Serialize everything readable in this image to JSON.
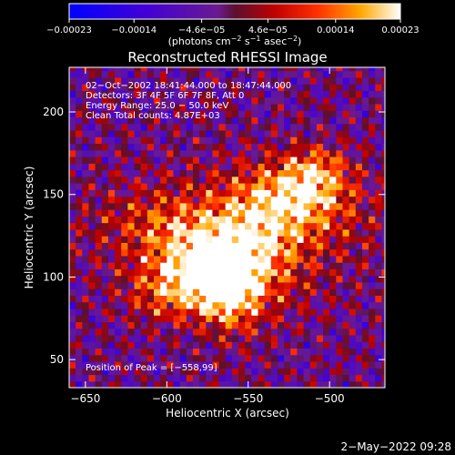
{
  "chart_data": {
    "type": "heatmap",
    "title": "Reconstructed RHESSI Image",
    "xlabel": "Heliocentric X (arcsec)",
    "ylabel": "Heliocentric Y (arcsec)",
    "xlim": [
      -660,
      -466
    ],
    "ylim": [
      33,
      227
    ],
    "x_ticks": [
      -650,
      -600,
      -550,
      -500
    ],
    "x_tick_labels": [
      "−650",
      "−600",
      "−550",
      "−500"
    ],
    "y_ticks": [
      50,
      100,
      150,
      200
    ],
    "y_tick_labels": [
      "50",
      "100",
      "150",
      "200"
    ],
    "colorbar": {
      "range": [
        -0.00023,
        0.00023
      ],
      "tick_values": [
        -0.00023,
        -0.00014,
        -4.6e-05,
        4.6e-05,
        0.00014,
        0.00023
      ],
      "tick_labels": [
        "−0.00023",
        "−0.00014",
        "−4.6e−05",
        "4.6e−05",
        "0.00014",
        "0.00023"
      ],
      "unit_main": "(photons cm",
      "unit_exp1": "−2",
      "unit_mid1": " s",
      "unit_exp2": "−1",
      "unit_mid2": " asec",
      "unit_exp3": "−2",
      "unit_end": ")"
    },
    "annotations": [
      "02−Oct−2002 18:41:44.000 to 18:47:44.000",
      "Detectors: 3F 4F 5F 6F 7F 8F, Att 0",
      "Energy Range: 25.0 − 50.0 keV",
      "Clean    Total counts: 4.87E+03"
    ],
    "peak_label": "Position of Peak = [−558,99]",
    "peak": [
      -558,
      99
    ],
    "grid": false,
    "sources": [
      {
        "x": -555,
        "y": 130,
        "sx": 60,
        "sy": 26,
        "amp": 9e-05
      },
      {
        "x": -520,
        "y": 148,
        "sx": 22,
        "sy": 14,
        "amp": 0.00018
      },
      {
        "x": -508,
        "y": 165,
        "sx": 14,
        "sy": 10,
        "amp": 0.00013
      },
      {
        "x": -545,
        "y": 115,
        "sx": 20,
        "sy": 25,
        "amp": 0.00014
      },
      {
        "x": -560,
        "y": 95,
        "sx": 12,
        "sy": 18,
        "amp": 0.0002
      },
      {
        "x": -578,
        "y": 98,
        "sx": 16,
        "sy": 14,
        "amp": 0.00015
      },
      {
        "x": -600,
        "y": 90,
        "sx": 18,
        "sy": 12,
        "amp": 0.00011
      },
      {
        "x": -585,
        "y": 115,
        "sx": 22,
        "sy": 14,
        "amp": 0.00012
      },
      {
        "x": -600,
        "y": 135,
        "sx": 28,
        "sy": 12,
        "amp": 6e-05
      }
    ]
  },
  "footer_date": "2−May−2022 09:28"
}
